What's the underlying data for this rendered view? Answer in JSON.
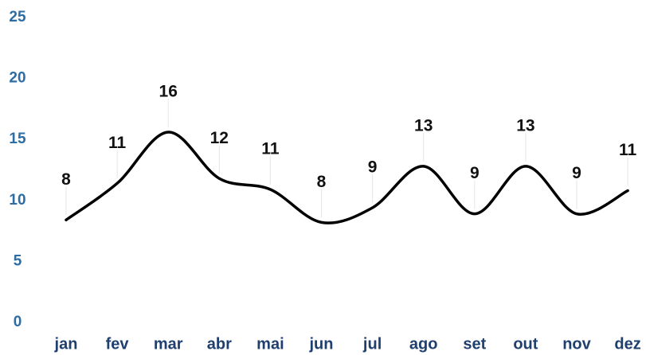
{
  "chart_data": {
    "type": "line",
    "categories": [
      "jan",
      "fev",
      "mar",
      "abr",
      "mai",
      "jun",
      "jul",
      "ago",
      "set",
      "out",
      "nov",
      "dez"
    ],
    "values": [
      8.4,
      11.4,
      15.6,
      11.8,
      10.9,
      8.2,
      9.4,
      12.8,
      8.9,
      12.8,
      8.9,
      10.8
    ],
    "value_labels": [
      "8",
      "11",
      "16",
      "12",
      "11",
      "8",
      "9",
      "13",
      "9",
      "13",
      "9",
      "11"
    ],
    "color": "#000000",
    "ylim": [
      0,
      25
    ],
    "yticks": [
      0,
      5,
      10,
      15,
      20,
      25
    ],
    "grid": false,
    "smooth": true
  }
}
